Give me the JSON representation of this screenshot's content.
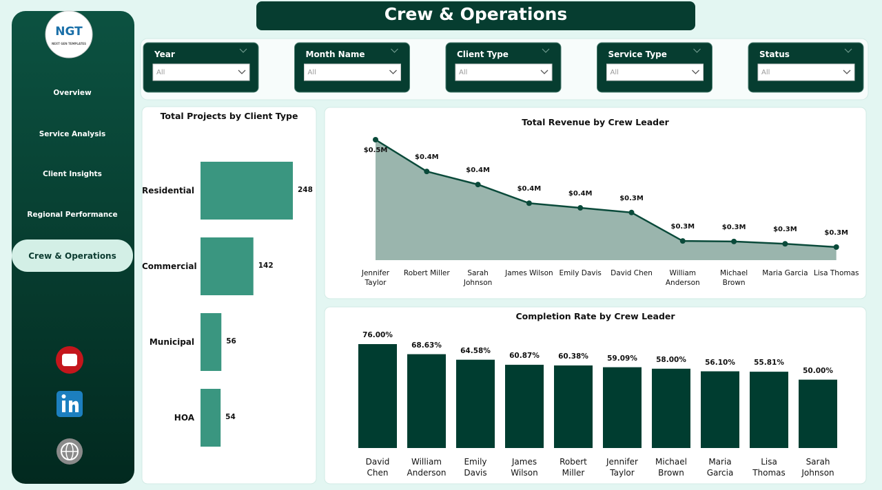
{
  "header": {
    "title": "Crew & Operations"
  },
  "logo": {
    "initials": "NGT",
    "tagline": "NEXT GEN TEMPLATES"
  },
  "nav": {
    "items": [
      "Overview",
      "Service Analysis",
      "Client Insights",
      "Regional Performance",
      "Crew & Operations"
    ],
    "active": 4
  },
  "filters": [
    {
      "label": "Year",
      "value": "All"
    },
    {
      "label": "Month Name",
      "value": "All"
    },
    {
      "label": "Client Type",
      "value": "All"
    },
    {
      "label": "Service Type",
      "value": "All"
    },
    {
      "label": "Status",
      "value": "All"
    }
  ],
  "chart_data": [
    {
      "type": "hbar",
      "title": "Total Projects by Client Type",
      "categories": [
        "Residential",
        "Commercial",
        "Municipal",
        "HOA"
      ],
      "values": [
        248,
        142,
        56,
        54
      ],
      "color": "#3a9680"
    },
    {
      "type": "area",
      "title": "Total Revenue by Crew Leader",
      "categories": [
        "Jennifer Taylor",
        "Robert Miller",
        "Sarah Johnson",
        "James Wilson",
        "Emily Davis",
        "David Chen",
        "William Anderson",
        "Michael Brown",
        "Maria Garcia",
        "Lisa Thomas"
      ],
      "values": [
        500000,
        432000,
        404000,
        364000,
        354000,
        344000,
        283000,
        282000,
        277000,
        270000
      ],
      "value_labels": [
        "$0.5M",
        "$0.4M",
        "$0.4M",
        "$0.4M",
        "$0.4M",
        "$0.3M",
        "$0.3M",
        "$0.3M",
        "$0.3M",
        "$0.3M"
      ],
      "color": "#0a4a3a",
      "fill": "#9ab5ad"
    },
    {
      "type": "bar",
      "title": "Completion Rate by Crew Leader",
      "categories": [
        "David Chen",
        "William Anderson",
        "Emily Davis",
        "James Wilson",
        "Robert Miller",
        "Jennifer Taylor",
        "Michael Brown",
        "Maria Garcia",
        "Lisa Thomas",
        "Sarah Johnson"
      ],
      "values": [
        76,
        68.63,
        64.58,
        60.87,
        60.38,
        59.09,
        58,
        56.1,
        55.81,
        50
      ],
      "value_labels": [
        "76.00%",
        "68.63%",
        "64.58%",
        "60.87%",
        "60.38%",
        "59.09%",
        "58.00%",
        "56.10%",
        "55.81%",
        "50.00%"
      ],
      "color": "#003d30"
    }
  ]
}
